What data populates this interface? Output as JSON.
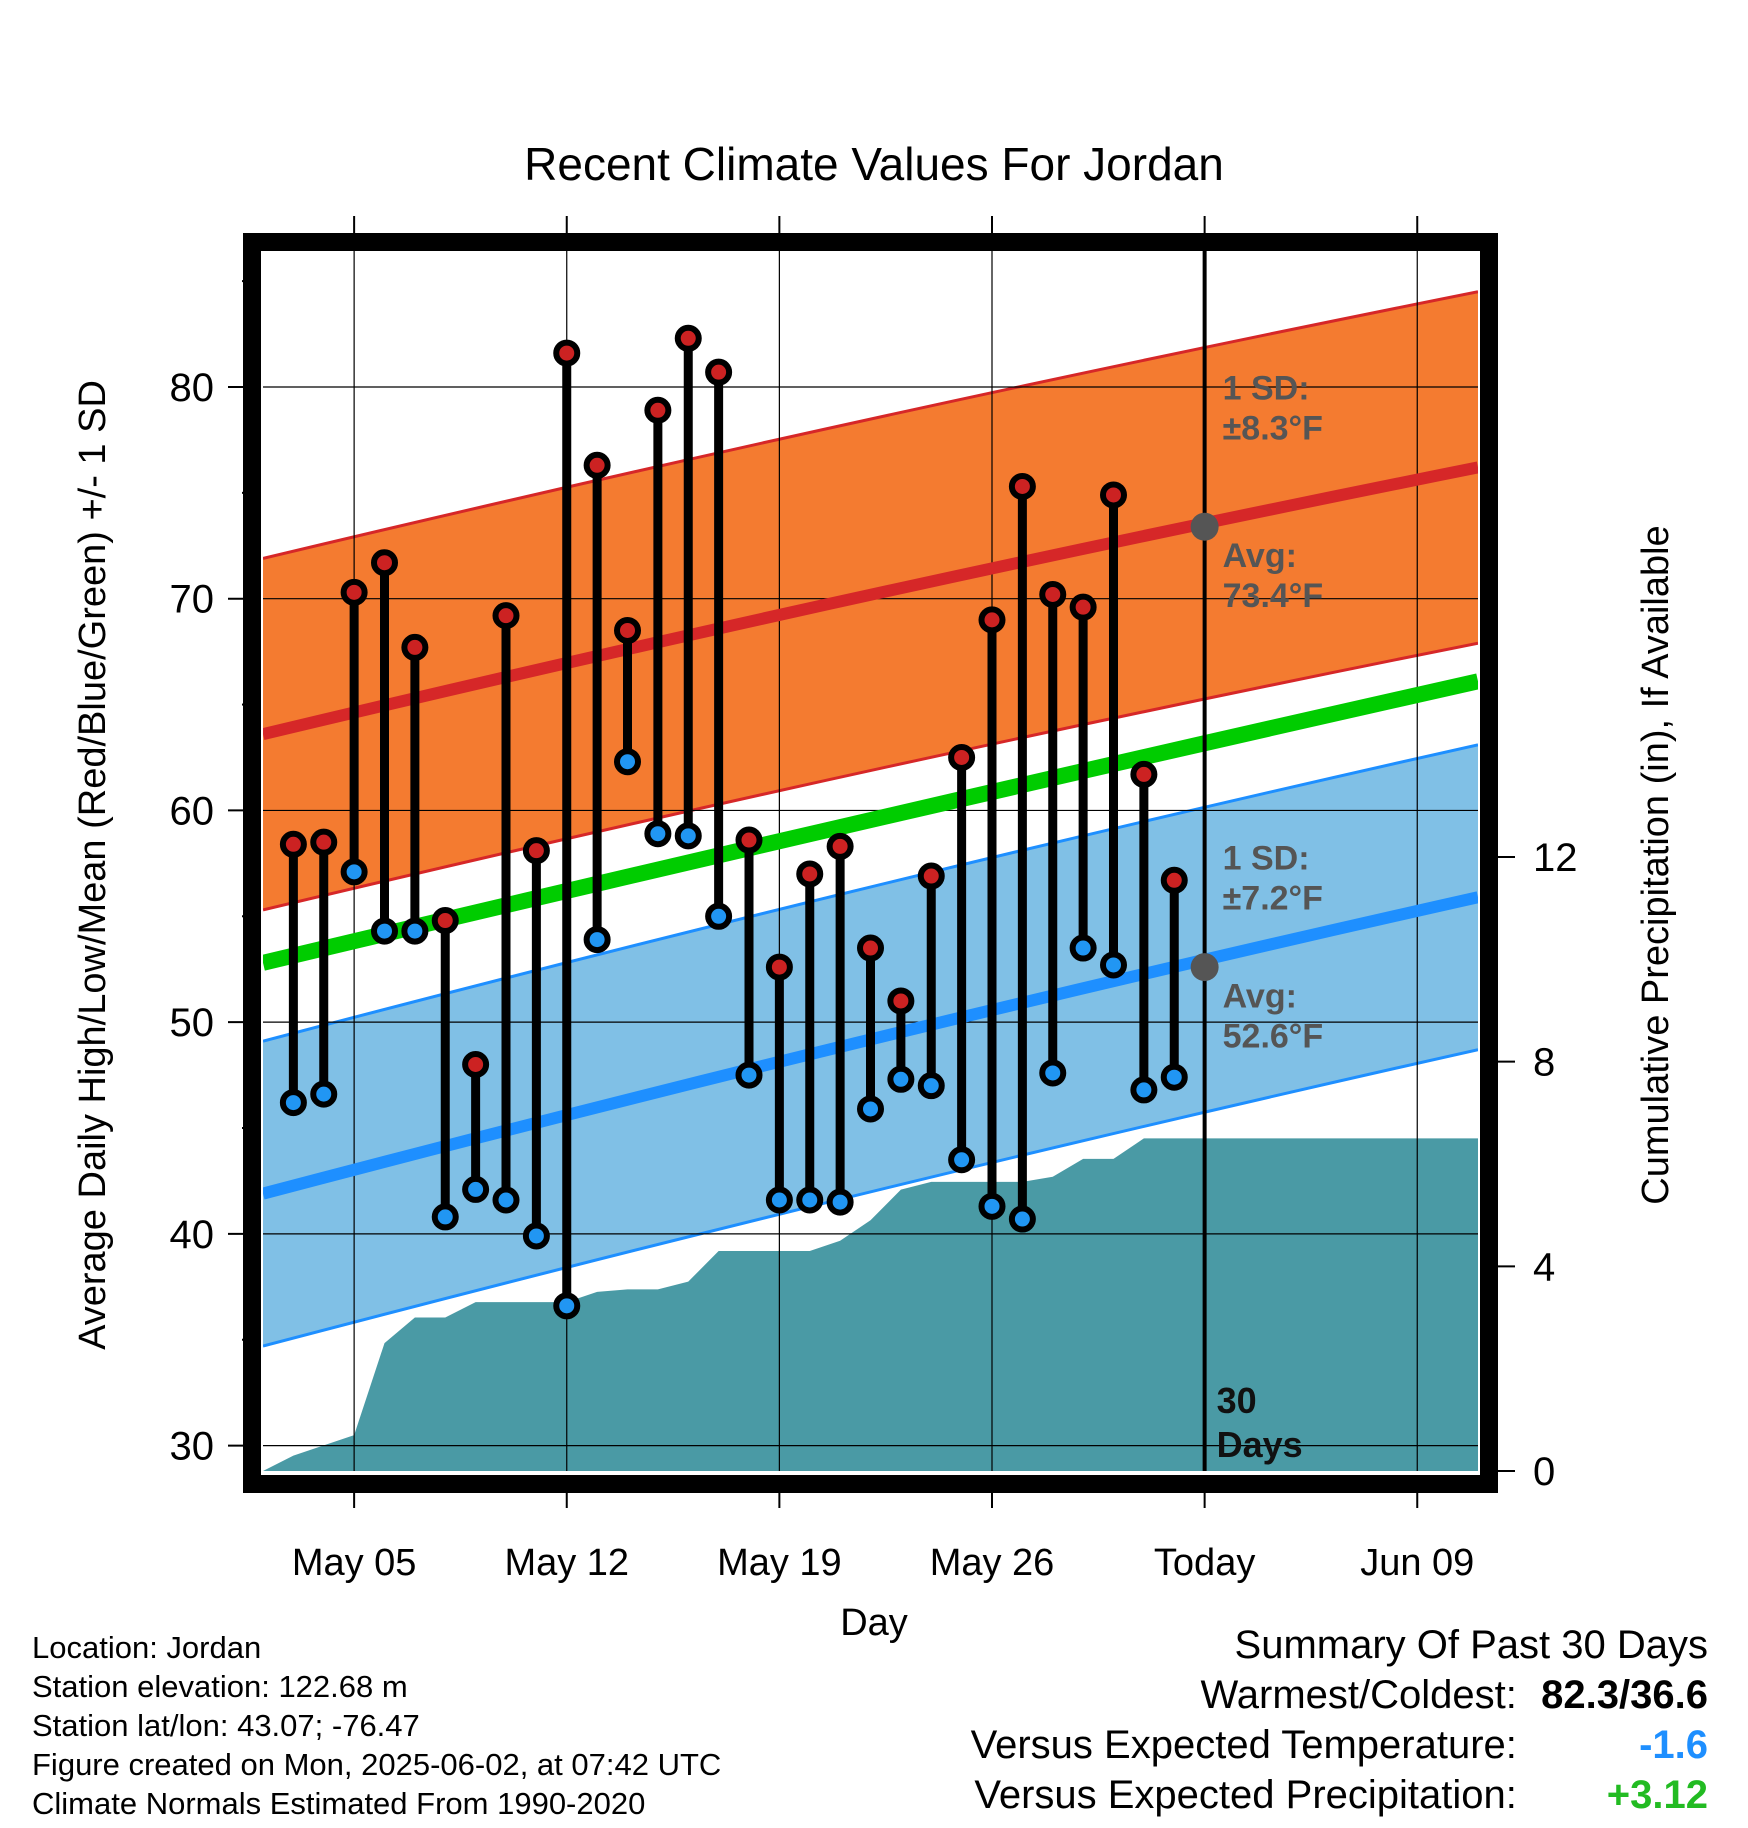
{
  "chart_data": {
    "type": "line",
    "title": "Recent Climate Values For Jordan",
    "xlabel": "Day",
    "ylabel": "Average Daily High/Low/Mean (Red/Blue/Green) +/- 1 SD",
    "y2label": "Cumulative Precipitation (in), If Available",
    "xlim": [
      "2025-05-02",
      "2025-06-11"
    ],
    "ylim": [
      28.8,
      86.8
    ],
    "y2lim": [
      0,
      24
    ],
    "yticks": [
      30,
      40,
      50,
      60,
      70,
      80
    ],
    "y2ticks": [
      0,
      4,
      8,
      12
    ],
    "xticks": [
      {
        "date": "2025-05-05",
        "label": "May 05"
      },
      {
        "date": "2025-05-12",
        "label": "May 12"
      },
      {
        "date": "2025-05-19",
        "label": "May 19"
      },
      {
        "date": "2025-05-26",
        "label": "May 26"
      },
      {
        "date": "2025-06-02",
        "label": "Today"
      },
      {
        "date": "2025-06-09",
        "label": "Jun 09"
      }
    ],
    "grid": true,
    "today": "2025-06-02",
    "days": [
      "2025-05-03",
      "2025-05-04",
      "2025-05-05",
      "2025-05-06",
      "2025-05-07",
      "2025-05-08",
      "2025-05-09",
      "2025-05-10",
      "2025-05-11",
      "2025-05-12",
      "2025-05-13",
      "2025-05-14",
      "2025-05-15",
      "2025-05-16",
      "2025-05-17",
      "2025-05-18",
      "2025-05-19",
      "2025-05-20",
      "2025-05-21",
      "2025-05-22",
      "2025-05-23",
      "2025-05-24",
      "2025-05-25",
      "2025-05-26",
      "2025-05-27",
      "2025-05-28",
      "2025-05-29",
      "2025-05-30",
      "2025-05-31",
      "2025-06-01"
    ],
    "observed_high": [
      58.4,
      58.5,
      70.3,
      71.7,
      67.7,
      54.8,
      48.0,
      69.2,
      58.1,
      81.6,
      76.3,
      68.5,
      78.9,
      82.3,
      80.7,
      58.6,
      52.6,
      57.0,
      58.3,
      53.5,
      51.0,
      56.9,
      62.5,
      69.0,
      75.3,
      70.2,
      69.6,
      74.9,
      61.7,
      56.7
    ],
    "observed_low": [
      46.2,
      46.6,
      57.1,
      54.3,
      54.3,
      40.8,
      42.1,
      41.6,
      39.9,
      36.6,
      53.9,
      62.3,
      58.9,
      58.8,
      55.0,
      47.5,
      41.6,
      41.6,
      41.5,
      45.9,
      47.3,
      47.0,
      43.5,
      41.3,
      40.7,
      47.6,
      53.5,
      52.7,
      46.8,
      47.4
    ],
    "normal_high_dates": [
      "2025-05-02",
      "2025-06-11"
    ],
    "normal_high": [
      63.6,
      76.2
    ],
    "normal_high_sd": 8.3,
    "normal_low": [
      41.9,
      55.9
    ],
    "normal_low_sd": 7.2,
    "normal_mean": [
      52.8,
      66.1
    ],
    "precip_cumulative": [
      {
        "date": "2025-05-02",
        "value": 0.0
      },
      {
        "date": "2025-05-03",
        "value": 0.3
      },
      {
        "date": "2025-05-04",
        "value": 0.5
      },
      {
        "date": "2025-05-05",
        "value": 0.7
      },
      {
        "date": "2025-05-06",
        "value": 2.5
      },
      {
        "date": "2025-05-07",
        "value": 3.0
      },
      {
        "date": "2025-05-08",
        "value": 3.0
      },
      {
        "date": "2025-05-09",
        "value": 3.3
      },
      {
        "date": "2025-05-12",
        "value": 3.3
      },
      {
        "date": "2025-05-13",
        "value": 3.5
      },
      {
        "date": "2025-05-14",
        "value": 3.55
      },
      {
        "date": "2025-05-15",
        "value": 3.55
      },
      {
        "date": "2025-05-16",
        "value": 3.7
      },
      {
        "date": "2025-05-17",
        "value": 4.3
      },
      {
        "date": "2025-05-19",
        "value": 4.3
      },
      {
        "date": "2025-05-20",
        "value": 4.3
      },
      {
        "date": "2025-05-21",
        "value": 4.5
      },
      {
        "date": "2025-05-22",
        "value": 4.9
      },
      {
        "date": "2025-05-23",
        "value": 5.5
      },
      {
        "date": "2025-05-24",
        "value": 5.65
      },
      {
        "date": "2025-05-27",
        "value": 5.65
      },
      {
        "date": "2025-05-28",
        "value": 5.75
      },
      {
        "date": "2025-05-29",
        "value": 6.1
      },
      {
        "date": "2025-05-30",
        "value": 6.1
      },
      {
        "date": "2025-05-31",
        "value": 6.5
      },
      {
        "date": "2025-06-11",
        "value": 6.5
      }
    ],
    "colors": {
      "high_band": "#f47b30",
      "high_line": "#d62728",
      "low_band": "#80c0e6",
      "low_line": "#1e8fff",
      "mean_line": "#00cc00",
      "precip": "#4a9aa5",
      "high_marker": "#cc2222",
      "low_marker": "#2196f3",
      "annotation": "#555555"
    },
    "annotations": {
      "high_sd": [
        "1 SD:",
        "±8.3°F"
      ],
      "high_avg": [
        "Avg:",
        "73.4°F"
      ],
      "low_sd": [
        "1 SD:",
        "±7.2°F"
      ],
      "low_avg": [
        "Avg:",
        "52.6°F"
      ],
      "period": [
        "30",
        "Days"
      ]
    },
    "today_high_avg": 73.4,
    "today_low_avg": 52.6
  },
  "info": [
    "Location: Jordan",
    "Station elevation: 122.68 m",
    "Station lat/lon: 43.07; -76.47",
    "Figure created on Mon, 2025-06-02, at 07:42 UTC",
    "Climate Normals Estimated From 1990-2020"
  ],
  "summary": {
    "title": "Summary Of Past 30 Days",
    "warm_cold_label": "Warmest/Coldest:",
    "warm_cold_value": "82.3/36.6",
    "temp_label": "Versus Expected Temperature:",
    "temp_value": "-1.6",
    "temp_color": "#1e8fff",
    "precip_label": "Versus Expected Precipitation:",
    "precip_value": "+3.12",
    "precip_color": "#22bb22"
  }
}
